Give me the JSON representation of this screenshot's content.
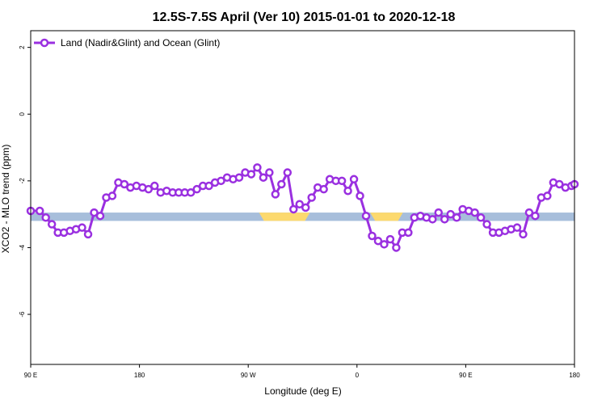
{
  "chart_data": {
    "type": "line",
    "title": "12.5S-7.5S April (Ver 10)   2015-01-01 to 2020-12-18",
    "xlabel": "Longitude (deg E)",
    "ylabel": "XCO2 - MLO trend (ppm)",
    "xlim": [
      90,
      540
    ],
    "ylim": [
      -7.5,
      2.5
    ],
    "x_ticks": [
      {
        "value": 90,
        "label": "90 E"
      },
      {
        "value": 180,
        "label": "180"
      },
      {
        "value": 270,
        "label": "90 W"
      },
      {
        "value": 360,
        "label": "0"
      },
      {
        "value": 450,
        "label": "90 E"
      },
      {
        "value": 540,
        "label": "180"
      }
    ],
    "y_ticks": [
      {
        "value": 2,
        "label": "2"
      },
      {
        "value": 0,
        "label": "0"
      },
      {
        "value": -2,
        "label": "-2"
      },
      {
        "value": -4,
        "label": "-4"
      },
      {
        "value": -6,
        "label": "-6"
      }
    ],
    "grid": false,
    "legend_position": "top-left",
    "land_band": {
      "y_range": [
        -3.2,
        -2.95
      ],
      "ocean_color": "#a7bedb",
      "land_color": "#fcd96e",
      "land_spans": [
        [
          279,
          321
        ],
        [
          371,
          398
        ]
      ]
    },
    "series": [
      {
        "name": "Land (Nadir&Glint) and Ocean (Glint)",
        "color": "#9a30e0",
        "x": [
          90,
          97.5,
          102.5,
          107.5,
          112.5,
          117.5,
          122.5,
          127.5,
          132.5,
          137.5,
          142.5,
          147.5,
          152.5,
          157.5,
          162.5,
          167.5,
          172.5,
          177.5,
          182.5,
          187.5,
          192.5,
          197.5,
          202.5,
          207.5,
          212.5,
          217.5,
          222.5,
          227.5,
          232.5,
          237.5,
          242.5,
          247.5,
          252.5,
          257.5,
          262.5,
          267.5,
          272.5,
          277.5,
          282.5,
          287.5,
          292.5,
          297.5,
          302.5,
          307.5,
          312.5,
          317.5,
          322.5,
          327.5,
          332.5,
          337.5,
          342.5,
          347.5,
          352.5,
          357.5,
          362.5,
          367.5,
          372.5,
          377.5,
          382.5,
          387.5,
          392.5,
          397.5,
          402.5,
          407.5,
          412.5,
          417.5,
          422.5,
          427.5,
          432.5,
          437.5,
          442.5,
          447.5,
          452.5,
          457.5,
          462.5,
          467.5,
          472.5,
          477.5,
          482.5,
          487.5,
          492.5,
          497.5,
          502.5,
          507.5,
          512.5,
          517.5,
          522.5,
          527.5,
          532.5,
          537.5,
          540
        ],
        "y": [
          -2.9,
          -2.9,
          -3.1,
          -3.3,
          -3.55,
          -3.55,
          -3.5,
          -3.45,
          -3.4,
          -3.6,
          -2.95,
          -3.05,
          -2.5,
          -2.45,
          -2.05,
          -2.1,
          -2.2,
          -2.15,
          -2.2,
          -2.25,
          -2.15,
          -2.35,
          -2.3,
          -2.35,
          -2.35,
          -2.35,
          -2.35,
          -2.25,
          -2.15,
          -2.15,
          -2.05,
          -2.0,
          -1.9,
          -1.95,
          -1.9,
          -1.75,
          -1.8,
          -1.6,
          -1.9,
          -1.75,
          -2.4,
          -2.1,
          -1.75,
          -2.85,
          -2.7,
          -2.8,
          -2.5,
          -2.2,
          -2.25,
          -1.95,
          -2.0,
          -2.0,
          -2.3,
          -1.95,
          -2.45,
          -3.05,
          -3.65,
          -3.8,
          -3.9,
          -3.75,
          -4.0,
          -3.55,
          -3.55,
          -3.1,
          -3.05,
          -3.1,
          -3.15,
          -2.95,
          -3.15,
          -3.0,
          -3.1,
          -2.85,
          -2.9,
          -2.95,
          -3.1,
          -3.3,
          -3.55,
          -3.55,
          -3.5,
          -3.45,
          -3.4,
          -3.6,
          -2.95,
          -3.05,
          -2.5,
          -2.45,
          -2.05,
          -2.1,
          -2.2,
          -2.15,
          -2.1
        ]
      }
    ]
  }
}
